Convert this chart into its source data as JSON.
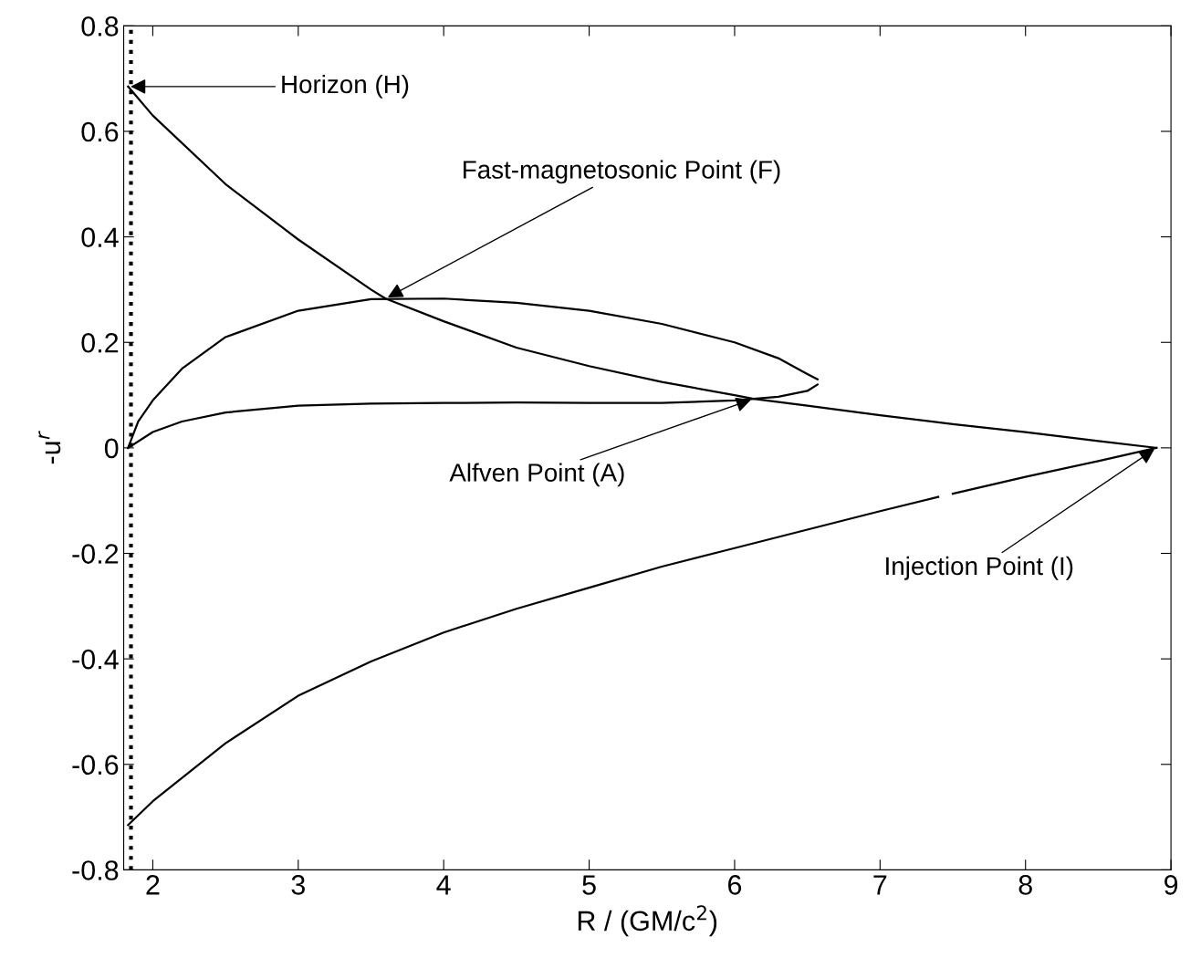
{
  "chart_data": {
    "type": "line",
    "xlabel": "R / (GM/c$^{2}$)",
    "ylabel": "-u$^{r}$",
    "xlim": [
      1.8,
      9
    ],
    "ylim": [
      -0.8,
      0.8
    ],
    "xticks": [
      2,
      3,
      4,
      5,
      6,
      7,
      8,
      9
    ],
    "yticks": [
      -0.8,
      -0.6,
      -0.4,
      -0.2,
      0,
      0.2,
      0.4,
      0.6,
      0.8
    ],
    "grid": false,
    "legend": false,
    "marker": "none",
    "line_style": "solid",
    "series": [
      {
        "color": "#000000",
        "x": [
          1.83,
          2.0,
          2.5,
          3.0,
          3.5,
          3.6,
          4.0,
          4.5,
          5.0,
          5.5,
          6.0,
          6.13,
          6.5,
          7.0,
          7.5,
          8.0,
          8.5,
          8.9
        ],
        "values": [
          0.685,
          0.63,
          0.5,
          0.395,
          0.3,
          0.283,
          0.24,
          0.19,
          0.155,
          0.125,
          0.1,
          0.093,
          0.08,
          0.062,
          0.045,
          0.03,
          0.013,
          0.0
        ]
      },
      {
        "color": "#010101",
        "x": [
          1.83,
          1.9,
          2.0,
          2.2,
          2.5,
          3.0,
          3.5,
          4.0,
          4.5,
          5.0,
          5.5,
          6.0,
          6.3,
          6.5,
          6.57
        ],
        "values": [
          0.0,
          0.05,
          0.09,
          0.15,
          0.21,
          0.26,
          0.282,
          0.283,
          0.275,
          0.26,
          0.235,
          0.2,
          0.17,
          0.14,
          0.13
        ]
      },
      {
        "color": "#020202",
        "x": [
          1.83,
          2.0,
          2.2,
          2.5,
          3.0,
          3.5,
          4.0,
          4.5,
          5.0,
          5.5,
          6.0,
          6.3,
          6.5,
          6.57
        ],
        "values": [
          0.0,
          0.03,
          0.05,
          0.067,
          0.08,
          0.084,
          0.085,
          0.086,
          0.085,
          0.085,
          0.09,
          0.097,
          0.108,
          0.12
        ]
      },
      {
        "color": "#030303",
        "x": [
          1.83,
          2.0,
          2.5,
          3.0,
          3.5,
          4.0,
          4.5,
          5.0,
          5.5,
          6.0,
          6.5,
          7.0,
          7.4,
          7.45,
          7.5,
          8.0,
          8.5,
          8.9
        ],
        "values": [
          -0.715,
          -0.67,
          -0.56,
          -0.47,
          -0.405,
          -0.35,
          -0.305,
          -0.265,
          -0.225,
          -0.19,
          -0.155,
          -0.12,
          -0.093,
          null,
          -0.087,
          -0.055,
          -0.025,
          0.0
        ]
      }
    ],
    "ref_lines": [
      {
        "axis": "x",
        "value": 1.85,
        "color": "#000000",
        "line_style": "dotted"
      }
    ],
    "annotations": [
      {
        "text": "Horizon (H)",
        "x": 1.83,
        "y": 0.685
      },
      {
        "text": "Fast-magnetosonic Point (F)",
        "x": 3.6,
        "y": 0.283
      },
      {
        "text": "Alfven Point (A)",
        "x": 6.13,
        "y": 0.093
      },
      {
        "text": "Injection Point (I)",
        "x": 8.9,
        "y": 0.0
      }
    ]
  }
}
